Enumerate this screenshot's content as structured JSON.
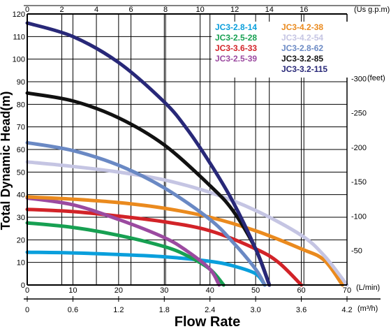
{
  "chart_data": {
    "type": "line",
    "title": "",
    "ylabel": "Total Dynamic Head(m)",
    "xlabel": "Flow Rate",
    "grid": true,
    "legend_position": "top-right",
    "xlim": [
      0,
      70
    ],
    "ylim": [
      0,
      120
    ],
    "x_ticks": [
      0,
      10,
      20,
      30,
      40,
      50,
      60,
      70
    ],
    "x_unit_label": "(L/min)",
    "y_ticks": [
      0,
      10,
      20,
      30,
      40,
      50,
      60,
      70,
      80,
      90,
      100,
      110,
      120
    ],
    "top_axis": {
      "unit_label": "(Us g.p.m)",
      "ticks": [
        {
          "label": "0",
          "at": 0
        },
        {
          "label": "2",
          "at": 7.57
        },
        {
          "label": "4",
          "at": 15.14
        },
        {
          "label": "6",
          "at": 22.71
        },
        {
          "label": "8",
          "at": 30.28
        },
        {
          "label": "10",
          "at": 37.85
        },
        {
          "label": "12",
          "at": 45.42
        },
        {
          "label": "14",
          "at": 52.99
        },
        {
          "label": "16",
          "at": 60.56
        }
      ]
    },
    "bottom_axis": {
      "unit_label": "(m³/h)",
      "ticks": [
        {
          "label": "0",
          "at": 0
        },
        {
          "label": "0.6",
          "at": 10
        },
        {
          "label": "1.2",
          "at": 20
        },
        {
          "label": "1.8",
          "at": 30
        },
        {
          "label": "2.4",
          "at": 40
        },
        {
          "label": "3.0",
          "at": 50
        },
        {
          "label": "3.6",
          "at": 60
        },
        {
          "label": "4.2",
          "at": 70
        }
      ]
    },
    "right_axis": {
      "unit_label": "(feet)",
      "ticks": [
        {
          "label": "-50",
          "at": 15.24
        },
        {
          "label": "-100",
          "at": 30.48
        },
        {
          "label": "-150",
          "at": 45.72
        },
        {
          "label": "-200",
          "at": 60.96
        },
        {
          "label": "-250",
          "at": 76.2
        },
        {
          "label": "-300",
          "at": 91.44
        }
      ]
    },
    "series": [
      {
        "name": "JC3-2.8-14",
        "color": "#0a9fdc",
        "x": [
          0,
          10,
          20,
          30,
          40,
          45,
          50,
          52
        ],
        "y": [
          14.5,
          14.2,
          13.5,
          12.5,
          10.5,
          8.5,
          5,
          0
        ]
      },
      {
        "name": "JC3-2.5-28",
        "color": "#17a052",
        "x": [
          0,
          10,
          20,
          30,
          35,
          40,
          43
        ],
        "y": [
          27.5,
          25.5,
          22,
          17,
          13,
          7,
          0
        ]
      },
      {
        "name": "JC3-3.6-33",
        "color": "#d22328",
        "x": [
          0,
          10,
          20,
          30,
          40,
          50,
          55,
          60
        ],
        "y": [
          33.5,
          32.5,
          30.5,
          28,
          24,
          16,
          10,
          0
        ]
      },
      {
        "name": "JC3-2.5-39",
        "color": "#9b4aa0",
        "x": [
          0,
          10,
          20,
          30,
          35,
          40,
          42
        ],
        "y": [
          38.5,
          35.5,
          29,
          21,
          15,
          7,
          0
        ]
      },
      {
        "name": "JC3-4.2-38",
        "color": "#ea8a1e",
        "x": [
          0,
          10,
          20,
          30,
          40,
          50,
          60,
          65,
          69
        ],
        "y": [
          39,
          38,
          36.5,
          34,
          30,
          24,
          16,
          11,
          0
        ]
      },
      {
        "name": "JC3-4.2-54",
        "color": "#c5c5e3",
        "x": [
          0,
          10,
          20,
          30,
          40,
          50,
          60,
          65,
          70
        ],
        "y": [
          54.5,
          52.5,
          50,
          46.5,
          41,
          33,
          22,
          13,
          0
        ]
      },
      {
        "name": "JC3-2.8-62",
        "color": "#6a89c4",
        "x": [
          0,
          10,
          20,
          30,
          40,
          45,
          50,
          52
        ],
        "y": [
          63,
          59.5,
          53,
          43,
          29,
          19,
          7,
          0
        ]
      },
      {
        "name": "JC3-3.2-85",
        "color": "#111111",
        "x": [
          0,
          10,
          20,
          30,
          40,
          45,
          50,
          53
        ],
        "y": [
          85,
          81.5,
          74,
          62,
          44,
          33,
          16,
          0
        ]
      },
      {
        "name": "JC3-3.2-115",
        "color": "#282878",
        "x": [
          0,
          10,
          20,
          30,
          35,
          40,
          45,
          50,
          53
        ],
        "y": [
          116,
          110,
          98.5,
          81,
          69,
          54,
          37,
          16,
          0
        ]
      }
    ]
  }
}
